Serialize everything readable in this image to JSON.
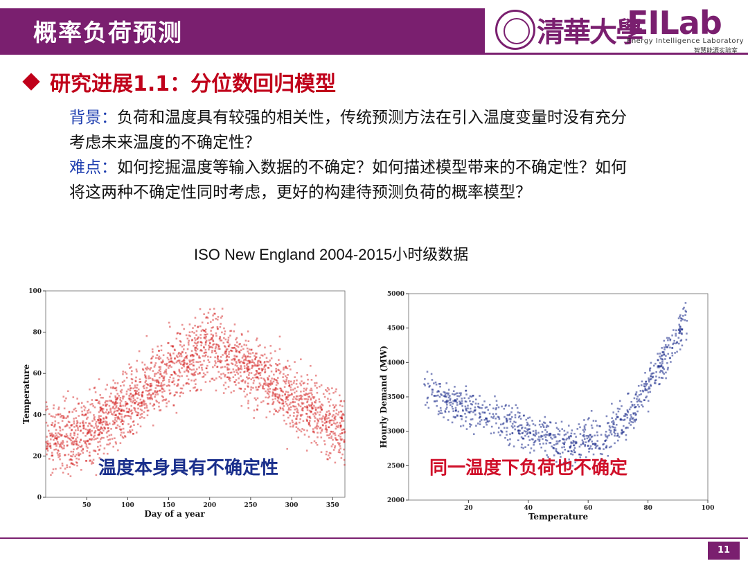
{
  "header": {
    "title": "概率负荷预测"
  },
  "logo": {
    "university": "清華大學",
    "lab": "EILab",
    "lab_en": "Energy Intelligence Laboratory",
    "lab_cn": "智慧能源实验室"
  },
  "section": {
    "title": "研究进展1.1：分位数回归模型"
  },
  "body": {
    "background_label": "背景：",
    "background_text": "负荷和温度具有较强的相关性，传统预测方法在引入温度变量时没有充分考虑未来温度的不确定性？",
    "difficulty_label": "难点：",
    "difficulty_text": "如何挖掘温度等输入数据的不确定？如何描述模型带来的不确定性？如何将这两种不确定性同时考虑，更好的构建待预测负荷的概率模型？"
  },
  "caption": "ISO New England 2004-2015小时级数据",
  "annotations": {
    "left": "温度本身具有不确定性",
    "right": "同一温度下负荷也不确定"
  },
  "page_number": "11",
  "chart_data": [
    {
      "type": "scatter",
      "xlabel": "Day of a year",
      "ylabel": "Temperature",
      "xlim": [
        0,
        365
      ],
      "ylim": [
        0,
        100
      ],
      "xticks": [
        50,
        100,
        150,
        200,
        250,
        300,
        350
      ],
      "yticks": [
        0,
        20,
        40,
        60,
        80,
        100
      ],
      "color": "#d01010",
      "trend": [
        {
          "x": 1,
          "y": 30
        },
        {
          "x": 40,
          "y": 30
        },
        {
          "x": 100,
          "y": 45
        },
        {
          "x": 150,
          "y": 62
        },
        {
          "x": 200,
          "y": 73
        },
        {
          "x": 250,
          "y": 63
        },
        {
          "x": 300,
          "y": 48
        },
        {
          "x": 365,
          "y": 32
        }
      ],
      "spread": 14
    },
    {
      "type": "scatter",
      "xlabel": "Temperature",
      "ylabel": "Hourly Demand (MW)",
      "xlim": [
        0,
        100
      ],
      "ylim": [
        2000,
        5000
      ],
      "xticks": [
        20,
        40,
        60,
        80,
        100
      ],
      "yticks": [
        2000,
        2500,
        3000,
        3500,
        4000,
        4500,
        5000
      ],
      "color": "#1a2a8a",
      "trend": [
        {
          "x": 5,
          "y": 3600
        },
        {
          "x": 20,
          "y": 3350
        },
        {
          "x": 40,
          "y": 3000
        },
        {
          "x": 55,
          "y": 2800
        },
        {
          "x": 65,
          "y": 2900
        },
        {
          "x": 75,
          "y": 3300
        },
        {
          "x": 85,
          "y": 4000
        },
        {
          "x": 92,
          "y": 4600
        }
      ],
      "spread": 250
    }
  ]
}
